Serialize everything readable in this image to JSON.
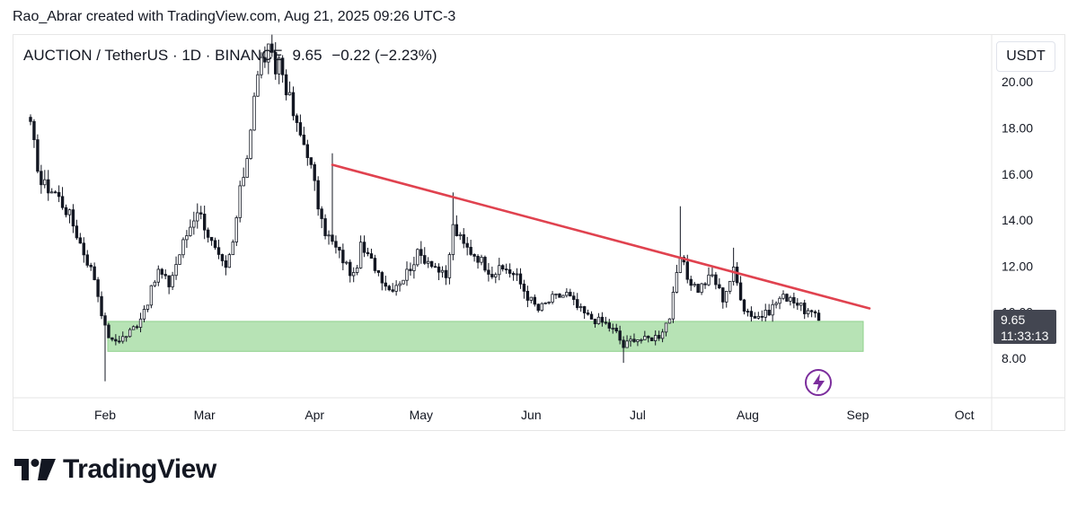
{
  "header": {
    "credit": "Rao_Abrar created with TradingView.com, Aug 21, 2025 09:26 UTC-3"
  },
  "symbol": {
    "label": "AUCTION / TetherUS · 1D · BINANCE",
    "last": "9.65",
    "change": "−0.22 (−2.23%)"
  },
  "currency": "USDT",
  "price_tag": {
    "price": "9.65",
    "countdown": "11:33:13"
  },
  "brand": {
    "name": "TradingView",
    "logo_icon": "tradingview-logo-icon"
  },
  "colors": {
    "up": "#26a69a",
    "down": "#131722",
    "candle": "#131722",
    "trendline": "#e0424f",
    "zone": "#b7e3b5",
    "icon": "#7b2d9c"
  },
  "chart_data": {
    "type": "candlestick",
    "title": "",
    "xlabel": "",
    "ylabel": "",
    "ylim": [
      7.0,
      21.5
    ],
    "y_ticks": [
      "8.00",
      "10.00",
      "12.00",
      "14.00",
      "16.00",
      "18.00",
      "20.00"
    ],
    "x_ticks": [
      {
        "label": "Feb",
        "date": "2025-02-01"
      },
      {
        "label": "Mar",
        "date": "2025-03-01"
      },
      {
        "label": "Apr",
        "date": "2025-04-01"
      },
      {
        "label": "May",
        "date": "2025-05-01"
      },
      {
        "label": "Jun",
        "date": "2025-06-01"
      },
      {
        "label": "Jul",
        "date": "2025-07-01"
      },
      {
        "label": "Aug",
        "date": "2025-08-01"
      },
      {
        "label": "Sep",
        "date": "2025-09-01"
      },
      {
        "label": "Oct",
        "date": "2025-10-01"
      }
    ],
    "x_range": [
      "2025-01-11",
      "2025-10-12"
    ],
    "close_path": [
      [
        "2025-01-11",
        18.0
      ],
      [
        "2025-01-14",
        15.6
      ],
      [
        "2025-01-18",
        15.2
      ],
      [
        "2025-01-22",
        14.2
      ],
      [
        "2025-01-26",
        12.6
      ],
      [
        "2025-01-29",
        11.5
      ],
      [
        "2025-02-01",
        9.3
      ],
      [
        "2025-02-03",
        8.7
      ],
      [
        "2025-02-07",
        9.0
      ],
      [
        "2025-02-10",
        9.5
      ],
      [
        "2025-02-13",
        10.5
      ],
      [
        "2025-02-16",
        11.8
      ],
      [
        "2025-02-19",
        11.2
      ],
      [
        "2025-02-23",
        13.0
      ],
      [
        "2025-02-27",
        14.5
      ],
      [
        "2025-03-01",
        13.8
      ],
      [
        "2025-03-03",
        13.0
      ],
      [
        "2025-03-05",
        12.3
      ],
      [
        "2025-03-07",
        11.8
      ],
      [
        "2025-03-09",
        13.0
      ],
      [
        "2025-03-11",
        15.2
      ],
      [
        "2025-03-13",
        16.8
      ],
      [
        "2025-03-15",
        19.5
      ],
      [
        "2025-03-17",
        20.9
      ],
      [
        "2025-03-19",
        21.3
      ],
      [
        "2025-03-21",
        20.5
      ],
      [
        "2025-03-22",
        21.0
      ],
      [
        "2025-03-24",
        19.8
      ],
      [
        "2025-03-27",
        18.0
      ],
      [
        "2025-03-30",
        17.0
      ],
      [
        "2025-04-01",
        15.5
      ],
      [
        "2025-04-03",
        13.8
      ],
      [
        "2025-04-06",
        13.0
      ],
      [
        "2025-04-09",
        12.3
      ],
      [
        "2025-04-12",
        11.5
      ],
      [
        "2025-04-14",
        12.8
      ],
      [
        "2025-04-18",
        12.0
      ],
      [
        "2025-04-22",
        11.0
      ],
      [
        "2025-04-26",
        11.5
      ],
      [
        "2025-04-30",
        12.5
      ],
      [
        "2025-05-04",
        12.2
      ],
      [
        "2025-05-08",
        11.4
      ],
      [
        "2025-05-10",
        13.7
      ],
      [
        "2025-05-13",
        12.9
      ],
      [
        "2025-05-17",
        12.4
      ],
      [
        "2025-05-21",
        11.7
      ],
      [
        "2025-05-25",
        11.9
      ],
      [
        "2025-05-28",
        11.5
      ],
      [
        "2025-05-31",
        10.7
      ],
      [
        "2025-06-03",
        10.1
      ],
      [
        "2025-06-07",
        10.6
      ],
      [
        "2025-06-11",
        10.8
      ],
      [
        "2025-06-14",
        10.2
      ],
      [
        "2025-06-17",
        9.8
      ],
      [
        "2025-06-22",
        9.5
      ],
      [
        "2025-06-25",
        9.1
      ],
      [
        "2025-06-27",
        8.5
      ],
      [
        "2025-06-30",
        8.9
      ],
      [
        "2025-07-03",
        8.8
      ],
      [
        "2025-07-07",
        9.0
      ],
      [
        "2025-07-10",
        9.8
      ],
      [
        "2025-07-13",
        12.4
      ],
      [
        "2025-07-15",
        11.5
      ],
      [
        "2025-07-18",
        11.0
      ],
      [
        "2025-07-22",
        11.6
      ],
      [
        "2025-07-25",
        10.6
      ],
      [
        "2025-07-28",
        11.8
      ],
      [
        "2025-07-31",
        10.2
      ],
      [
        "2025-08-03",
        9.8
      ],
      [
        "2025-08-06",
        9.9
      ],
      [
        "2025-08-10",
        10.6
      ],
      [
        "2025-08-13",
        10.7
      ],
      [
        "2025-08-16",
        10.2
      ],
      [
        "2025-08-19",
        9.9
      ],
      [
        "2025-08-21",
        9.65
      ]
    ],
    "spikes": [
      {
        "date": "2025-02-01",
        "low": 7.0
      },
      {
        "date": "2025-03-19",
        "high": 21.5
      },
      {
        "date": "2025-04-06",
        "high": 16.9
      },
      {
        "date": "2025-05-10",
        "high": 15.2
      },
      {
        "date": "2025-06-27",
        "low": 7.8
      },
      {
        "date": "2025-07-13",
        "high": 14.6
      },
      {
        "date": "2025-07-28",
        "high": 12.8
      }
    ],
    "trendline": {
      "start": [
        "2025-04-06",
        16.4
      ],
      "end": [
        "2025-09-01",
        10.3
      ]
    },
    "support_zone": {
      "from": "2025-02-01",
      "to": "2025-09-01",
      "low": 8.3,
      "high": 9.6
    }
  }
}
